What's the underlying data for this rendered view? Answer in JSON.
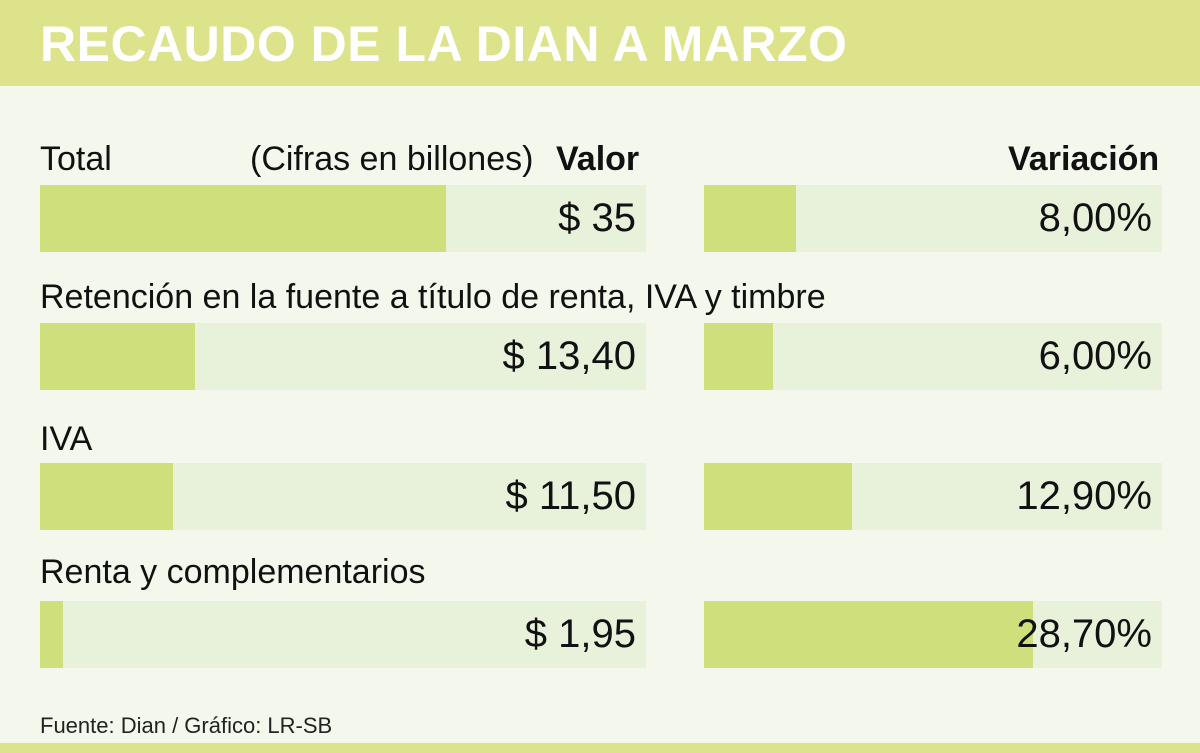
{
  "title": "RECAUDO DE LA DIAN A MARZO",
  "source": "Fuente: Dian / Gráfico: LR-SB",
  "colors": {
    "header": "#dce38a",
    "bar": "#cfdf7c",
    "track": "#e8f2da",
    "background": "#f4f8ec"
  },
  "chart_data": {
    "type": "bar",
    "orientation": "horizontal",
    "units_note": "(Cifras en billones)",
    "columns": {
      "value_header": "Valor",
      "change_header": "Variación"
    },
    "categories": [
      "Total",
      "Retención en la fuente a título de renta, IVA y timbre",
      "IVA",
      "Renta y complementarios"
    ],
    "series": [
      {
        "name": "Valor",
        "values": [
          35,
          13.4,
          11.5,
          1.95
        ],
        "labels": [
          "$ 35",
          "$ 13,40",
          "$ 11,50",
          "$ 1,95"
        ],
        "xlim": [
          0,
          52.3
        ]
      },
      {
        "name": "Variación",
        "values": [
          8.0,
          6.0,
          12.9,
          28.7
        ],
        "labels": [
          "8,00%",
          "6,00%",
          "12,90%",
          "28,70%"
        ],
        "xlim": [
          0,
          40
        ]
      }
    ]
  }
}
